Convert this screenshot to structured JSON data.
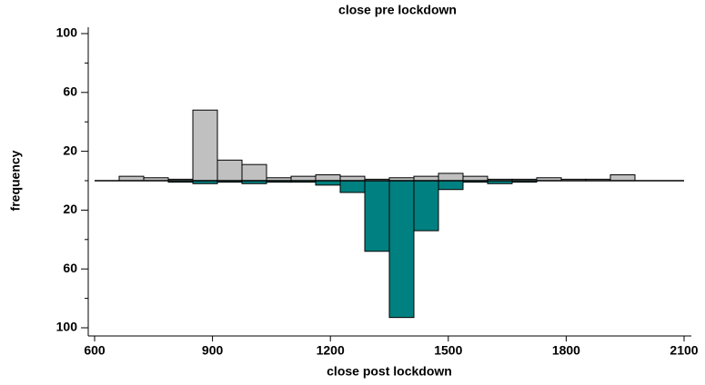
{
  "chart_data": {
    "type": "histogram",
    "title": "close pre lockdown",
    "xlabel": "close post lockdown",
    "ylabel": "frequency",
    "bins": [
      662.5,
      725,
      787.5,
      850,
      912.5,
      975,
      1037.5,
      1100,
      1162.5,
      1225,
      1287.5,
      1350,
      1412.5,
      1475,
      1537.5,
      1600,
      1662.5,
      1725,
      1787.5,
      1850,
      1912.5,
      1975
    ],
    "series": [
      {
        "color": "#c0c0c0",
        "direction": "up",
        "values": [
          3,
          2,
          1,
          48,
          14,
          11,
          2,
          3,
          4,
          3,
          1,
          2,
          3,
          5,
          3,
          1,
          1,
          2,
          1,
          1,
          4
        ]
      },
      {
        "color": "#008080",
        "direction": "down",
        "values": [
          0,
          0,
          1,
          2,
          1,
          2,
          1,
          1,
          3,
          8,
          48,
          93,
          34,
          6,
          1,
          2,
          1,
          0,
          0,
          0,
          0
        ]
      }
    ],
    "xlim": [
      600,
      2100
    ],
    "xticks": [
      600,
      900,
      1200,
      1500,
      1800,
      2100
    ],
    "ylim": [
      -100,
      100
    ],
    "yticks": [
      100,
      60,
      20,
      {
        "value": -20,
        "label": "20"
      },
      {
        "value": -60,
        "label": "60"
      },
      {
        "value": -100,
        "label": "100"
      }
    ],
    "yminorticks": [
      80,
      40,
      0,
      -40,
      -80
    ]
  }
}
